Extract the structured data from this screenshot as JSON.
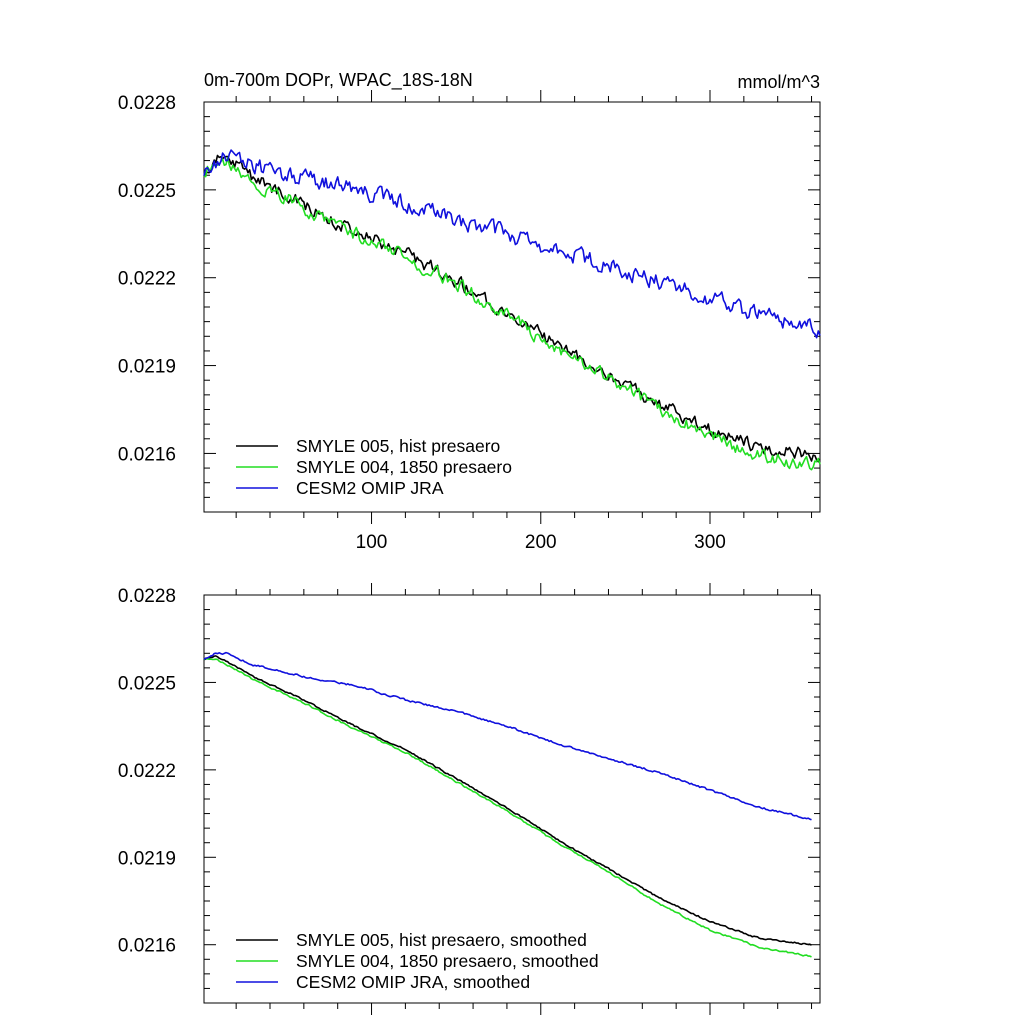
{
  "chart_data": [
    {
      "type": "line",
      "title": "0m-700m DOPr, WPAC_18S-18N",
      "units": "mmol/m^3",
      "xlim": [
        1,
        365
      ],
      "ylim": [
        0.0214,
        0.0228
      ],
      "xticks": [
        100,
        200,
        300
      ],
      "yticks": [
        0.0216,
        0.0219,
        0.0222,
        0.0225,
        0.0228
      ],
      "ytick_labels": [
        "0.0216",
        "0.0219",
        "0.0222",
        "0.0225",
        "0.0228"
      ],
      "grid": false,
      "legend": "bottom-left",
      "series": [
        {
          "name": "SMYLE 005, hist presaero",
          "color": "#000000",
          "x": [
            1,
            8,
            15,
            30,
            60,
            90,
            120,
            150,
            180,
            210,
            240,
            270,
            300,
            330,
            365
          ],
          "y": [
            0.02256,
            0.0226,
            0.02261,
            0.02254,
            0.02245,
            0.02236,
            0.02228,
            0.02219,
            0.02208,
            0.02197,
            0.02187,
            0.02177,
            0.02168,
            0.02162,
            0.02159
          ],
          "noise": 2e-05
        },
        {
          "name": "SMYLE 004, 1850 presaero",
          "color": "#22dd22",
          "x": [
            1,
            8,
            15,
            30,
            60,
            90,
            120,
            150,
            180,
            210,
            240,
            270,
            300,
            330,
            365
          ],
          "y": [
            0.02256,
            0.0226,
            0.0226,
            0.02253,
            0.02244,
            0.02235,
            0.02227,
            0.02218,
            0.02207,
            0.02196,
            0.02186,
            0.02175,
            0.02166,
            0.02159,
            0.02156
          ],
          "noise": 2e-05
        },
        {
          "name": "CESM2 OMIP JRA",
          "color": "#1010dd",
          "x": [
            1,
            8,
            15,
            30,
            60,
            90,
            120,
            150,
            180,
            210,
            240,
            270,
            300,
            330,
            365
          ],
          "y": [
            0.02256,
            0.02259,
            0.02262,
            0.02258,
            0.02254,
            0.0225,
            0.02245,
            0.0224,
            0.02235,
            0.02229,
            0.02224,
            0.02219,
            0.02213,
            0.02207,
            0.02202
          ],
          "noise": 2.5e-05
        }
      ]
    },
    {
      "type": "line",
      "xlim": [
        1,
        365
      ],
      "ylim": [
        0.0214,
        0.0228
      ],
      "yticks": [
        0.0216,
        0.0219,
        0.0222,
        0.0225,
        0.0228
      ],
      "ytick_labels": [
        "0.0216",
        "0.0219",
        "0.0222",
        "0.0225",
        "0.0228"
      ],
      "grid": false,
      "legend": "bottom-left",
      "series": [
        {
          "name": "SMYLE 005, hist presaero, smoothed",
          "color": "#000000",
          "x": [
            1,
            8,
            15,
            30,
            60,
            90,
            120,
            150,
            180,
            210,
            240,
            270,
            300,
            330,
            360
          ],
          "y": [
            0.02258,
            0.02259,
            0.02257,
            0.02252,
            0.02244,
            0.02235,
            0.02227,
            0.02217,
            0.02207,
            0.02196,
            0.02186,
            0.02176,
            0.02168,
            0.02162,
            0.0216
          ],
          "noise": 2.5e-06
        },
        {
          "name": "SMYLE 004, 1850 presaero, smoothed",
          "color": "#22dd22",
          "x": [
            1,
            8,
            15,
            30,
            60,
            90,
            120,
            150,
            180,
            210,
            240,
            270,
            300,
            330,
            360
          ],
          "y": [
            0.02258,
            0.02258,
            0.02256,
            0.02251,
            0.02243,
            0.02234,
            0.02226,
            0.02216,
            0.02206,
            0.02195,
            0.02185,
            0.02174,
            0.02165,
            0.02159,
            0.02156
          ],
          "noise": 2.5e-06
        },
        {
          "name": "CESM2 OMIP JRA, smoothed",
          "color": "#1010dd",
          "x": [
            1,
            8,
            15,
            30,
            60,
            90,
            120,
            150,
            180,
            210,
            240,
            270,
            300,
            330,
            360
          ],
          "y": [
            0.02258,
            0.0226,
            0.0226,
            0.02256,
            0.02252,
            0.02249,
            0.02244,
            0.0224,
            0.02235,
            0.02229,
            0.02224,
            0.02219,
            0.02213,
            0.02207,
            0.02203
          ],
          "noise": 3e-06
        }
      ]
    }
  ]
}
